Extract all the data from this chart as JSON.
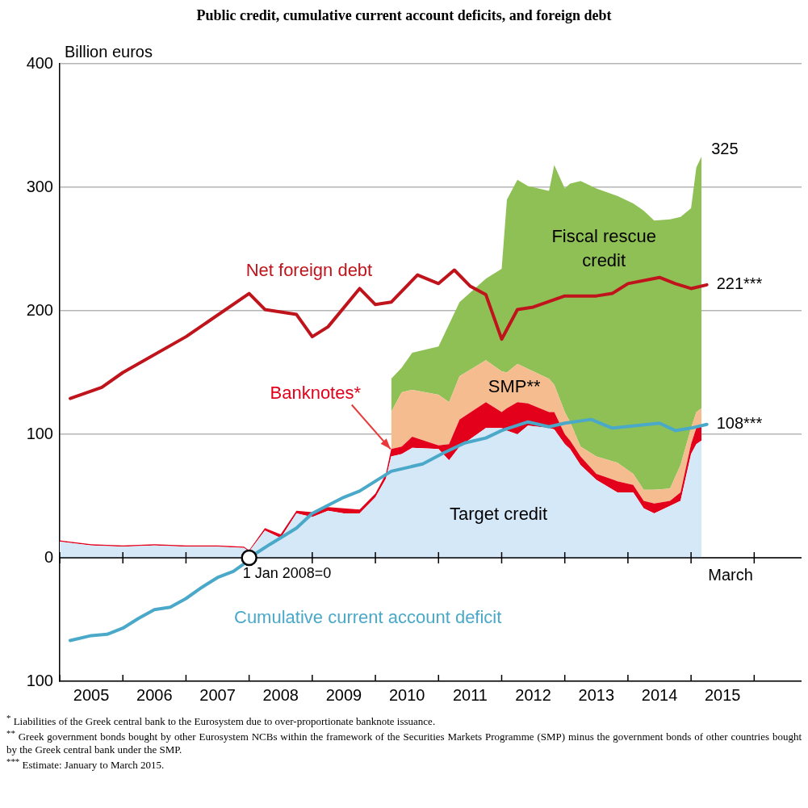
{
  "chart_data": {
    "type": "area",
    "title": "Public credit, cumulative current account deficits, and foreign debt",
    "ylabel": "Billion euros",
    "stacked": true,
    "grid": "y",
    "legend": false,
    "xlim": [
      "2005-01",
      "2016-10"
    ],
    "xticks": [
      {
        "value": "2005-01",
        "label": null
      },
      {
        "value": "2005-07",
        "label": "2005"
      },
      {
        "value": "2006-01",
        "label": null
      },
      {
        "value": "2006-07",
        "label": "2006"
      },
      {
        "value": "2007-01",
        "label": null
      },
      {
        "value": "2007-07",
        "label": "2007"
      },
      {
        "value": "2008-01",
        "label": null
      },
      {
        "value": "2008-07",
        "label": "2008"
      },
      {
        "value": "2009-01",
        "label": null
      },
      {
        "value": "2009-07",
        "label": "2009"
      },
      {
        "value": "2010-01",
        "label": null
      },
      {
        "value": "2010-07",
        "label": "2010"
      },
      {
        "value": "2011-01",
        "label": null
      },
      {
        "value": "2011-07",
        "label": "2011"
      },
      {
        "value": "2012-01",
        "label": null
      },
      {
        "value": "2012-07",
        "label": "2012"
      },
      {
        "value": "2013-01",
        "label": null
      },
      {
        "value": "2013-07",
        "label": "2013"
      },
      {
        "value": "2014-01",
        "label": null
      },
      {
        "value": "2014-07",
        "label": "2014"
      },
      {
        "value": "2015-01",
        "label": null
      },
      {
        "value": "2015-07",
        "label": "2015"
      },
      {
        "value": "2016-01",
        "label": null
      }
    ],
    "ylim": [
      -100,
      400
    ],
    "yticks": [
      {
        "value": -100,
        "label": "100"
      },
      0,
      100,
      200,
      300,
      400
    ],
    "x": [
      "2005-01",
      "2005-07",
      "2006-01",
      "2006-07",
      "2007-01",
      "2007-07",
      "2007-12",
      "2008-01",
      "2008-04",
      "2008-07",
      "2008-10",
      "2009-01",
      "2009-04",
      "2009-07",
      "2009-10",
      "2010-01",
      "2010-03",
      "2010-04",
      "2010-06",
      "2010-08",
      "2011-01",
      "2011-03",
      "2011-05",
      "2011-10",
      "2012-01",
      "2012-02",
      "2012-04",
      "2012-06",
      "2012-10",
      "2012-11",
      "2013-01",
      "2013-02",
      "2013-04",
      "2013-07",
      "2013-11",
      "2014-02",
      "2014-04",
      "2014-06",
      "2014-09",
      "2014-11",
      "2015-01",
      "2015-02",
      "2015-03"
    ],
    "series": [
      {
        "name": "Target credit",
        "color": "#d5e8f8",
        "values": [
          13,
          10,
          9,
          10,
          9,
          9,
          8,
          5,
          22,
          16,
          36,
          33,
          38,
          36,
          36,
          49,
          64,
          82,
          84,
          89,
          88,
          79,
          90,
          105,
          105,
          103,
          100,
          107,
          105,
          104,
          92,
          88,
          75,
          63,
          53,
          53,
          40,
          36,
          42,
          46,
          84,
          92,
          95
        ]
      },
      {
        "name": "Banknotes*",
        "color": "#e3001b",
        "values": [
          1,
          1,
          1,
          1,
          1,
          1,
          1,
          1,
          2,
          3,
          2,
          4,
          3,
          4,
          3,
          3,
          4,
          6,
          6,
          9,
          3,
          13,
          22,
          21,
          13,
          18,
          26,
          18,
          13,
          14,
          8,
          7,
          7,
          5,
          9,
          6,
          6,
          8,
          4,
          7,
          8,
          13,
          13
        ]
      },
      {
        "name": "SMP**",
        "color": "#f5bd8f",
        "values": [
          null,
          null,
          null,
          null,
          null,
          null,
          null,
          null,
          null,
          null,
          null,
          null,
          null,
          null,
          null,
          null,
          null,
          30,
          44,
          38,
          41,
          34,
          35,
          34,
          33,
          29,
          31,
          28,
          27,
          22,
          18,
          15,
          8,
          14,
          15,
          9,
          9,
          11,
          10,
          22,
          13,
          13,
          13
        ]
      },
      {
        "name": "Fiscal rescue credit",
        "color": "#8fc055",
        "values": [
          null,
          null,
          null,
          null,
          null,
          null,
          null,
          null,
          null,
          null,
          null,
          null,
          null,
          null,
          null,
          null,
          null,
          27,
          20,
          30,
          39,
          63,
          60,
          66,
          83,
          140,
          149,
          148,
          152,
          178,
          181,
          193,
          215,
          217,
          216,
          219,
          226,
          218,
          218,
          201,
          178,
          198,
          204
        ]
      },
      {
        "name": "Net foreign debt",
        "type": "line",
        "color": "#c0141c",
        "x": [
          "2005-03",
          "2005-09",
          "2006-01",
          "2007-01",
          "2008-01",
          "2008-04",
          "2008-10",
          "2009-01",
          "2009-04",
          "2009-10",
          "2010-01",
          "2010-04",
          "2010-09",
          "2011-01",
          "2011-04",
          "2011-07",
          "2011-10",
          "2012-01",
          "2012-04",
          "2012-07",
          "2013-01",
          "2013-07",
          "2013-10",
          "2014-01",
          "2014-07",
          "2014-10",
          "2015-01",
          "2015-04"
        ],
        "values": [
          129,
          138,
          150,
          179,
          214,
          201,
          197,
          179,
          187,
          218,
          205,
          207,
          229,
          222,
          233,
          220,
          213,
          177,
          201,
          203,
          212,
          212,
          214,
          222,
          227,
          222,
          218,
          221
        ]
      },
      {
        "name": "Cumulative current account deficit",
        "type": "line",
        "color": "#4aa8c8",
        "x": [
          "2005-03",
          "2005-07",
          "2005-10",
          "2006-01",
          "2006-04",
          "2006-07",
          "2006-10",
          "2007-01",
          "2007-04",
          "2007-07",
          "2007-10",
          "2007-12",
          "2008-01",
          "2008-05",
          "2008-10",
          "2009-01",
          "2009-07",
          "2009-10",
          "2010-01",
          "2010-04",
          "2010-10",
          "2011-02",
          "2011-06",
          "2011-10",
          "2012-01",
          "2012-06",
          "2012-10",
          "2013-01",
          "2013-06",
          "2013-10",
          "2014-07",
          "2014-10",
          "2015-01",
          "2015-04"
        ],
        "values": [
          -67,
          -63,
          -62,
          -57,
          -49,
          -42,
          -40,
          -33,
          -24,
          -16,
          -11,
          -5,
          0,
          11,
          24,
          36,
          49,
          54,
          62,
          70,
          76,
          85,
          93,
          97,
          103,
          110,
          106,
          109,
          112,
          105,
          109,
          103,
          105,
          108
        ]
      }
    ],
    "annotations": [
      {
        "text": "325",
        "x": "2015-03",
        "y": 325
      },
      {
        "text": "221***",
        "x": "2015-04",
        "y": 221
      },
      {
        "text": "108***",
        "x": "2015-04",
        "y": 108
      },
      {
        "text": "1 Jan 2008=0",
        "x": "2008-01",
        "y": 0
      },
      "March",
      "$^{*}$ Liabilities of the Greek central bank to the Eurosystem due to over-proportionate banknote issuance.",
      "$^{**}$ Greek government bonds bought by other Eurosystem NCBs within the framework of the Securities Markets Programme (SMP) minus the government bonds of other countries bought by the Greek central bank under the SMP.",
      "$^{***}$ Estimate: January to March 2015."
    ]
  }
}
